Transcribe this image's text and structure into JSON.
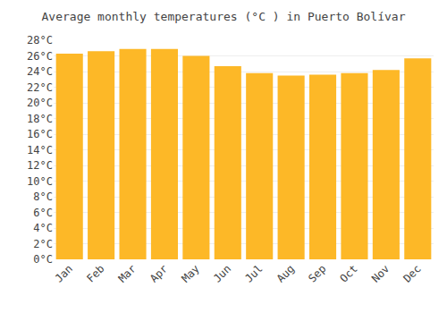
{
  "chart_data": {
    "type": "bar",
    "title": "Average monthly temperatures (°C ) in Puerto Bolívar",
    "categories": [
      "Jan",
      "Feb",
      "Mar",
      "Apr",
      "May",
      "Jun",
      "Jul",
      "Aug",
      "Sep",
      "Oct",
      "Nov",
      "Dec"
    ],
    "values": [
      26.3,
      26.6,
      26.9,
      26.9,
      26.0,
      24.7,
      23.8,
      23.5,
      23.6,
      23.8,
      24.2,
      25.7
    ],
    "color": "#FDB827",
    "ylim": [
      0,
      28
    ],
    "yticks": [
      {
        "value": 0,
        "label": "0°C"
      },
      {
        "value": 2,
        "label": "2°C"
      },
      {
        "value": 4,
        "label": "4°C"
      },
      {
        "value": 6,
        "label": "6°C"
      },
      {
        "value": 8,
        "label": "8°C"
      },
      {
        "value": 10,
        "label": "10°C"
      },
      {
        "value": 12,
        "label": "12°C"
      },
      {
        "value": 14,
        "label": "14°C"
      },
      {
        "value": 16,
        "label": "16°C"
      },
      {
        "value": 18,
        "label": "18°C"
      },
      {
        "value": 20,
        "label": "20°C"
      },
      {
        "value": 22,
        "label": "22°C"
      },
      {
        "value": 24,
        "label": "24°C"
      },
      {
        "value": 26,
        "label": "26°C"
      },
      {
        "value": 28,
        "label": "28°C"
      }
    ],
    "grid": true
  }
}
